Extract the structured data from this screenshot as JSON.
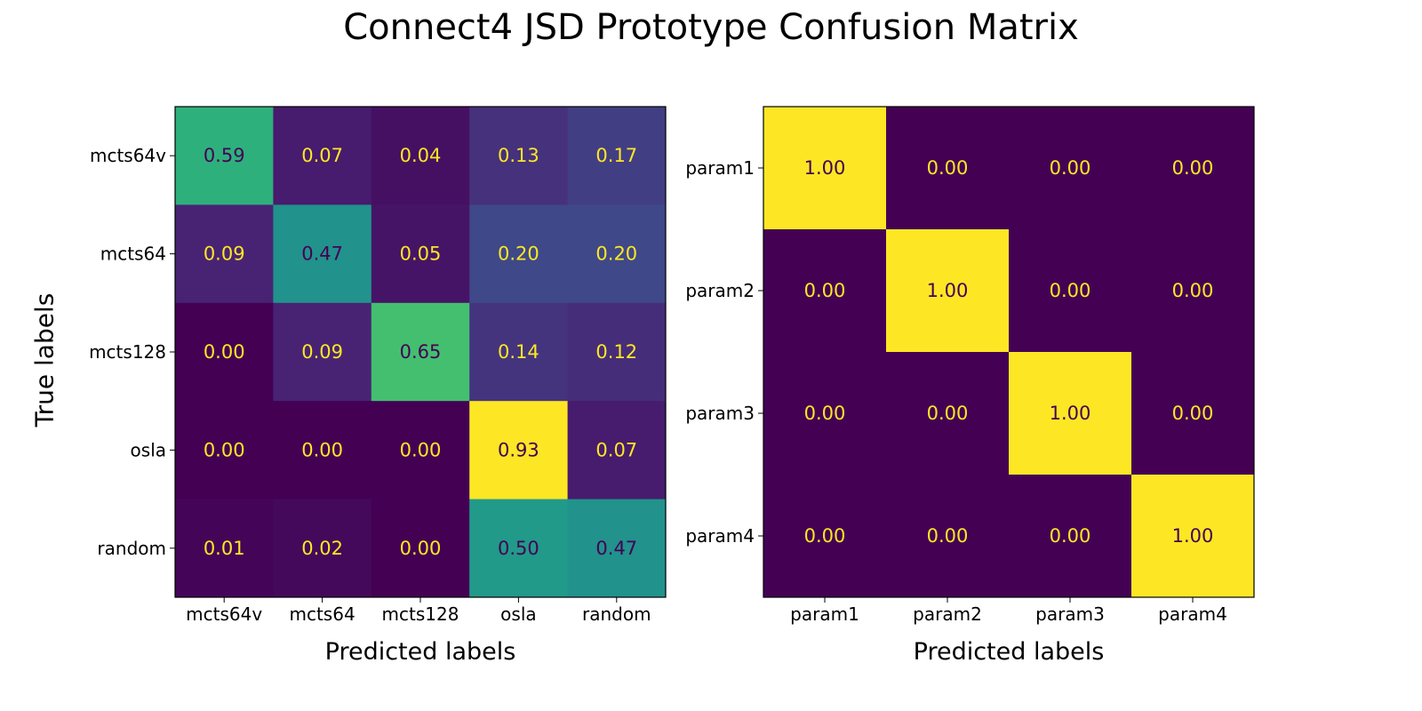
{
  "title": "Connect4 JSD Prototype Confusion Matrix",
  "shared_ylabel": "True labels",
  "colormap": "viridis",
  "chart_data": [
    {
      "type": "heatmap",
      "xlabel": "Predicted labels",
      "ylabel": "True labels",
      "x_categories": [
        "mcts64v",
        "mcts64",
        "mcts128",
        "osla",
        "random"
      ],
      "y_categories": [
        "mcts64v",
        "mcts64",
        "mcts128",
        "osla",
        "random"
      ],
      "values": [
        [
          0.59,
          0.07,
          0.04,
          0.13,
          0.17
        ],
        [
          0.09,
          0.47,
          0.05,
          0.2,
          0.2
        ],
        [
          0.0,
          0.09,
          0.65,
          0.14,
          0.12
        ],
        [
          0.0,
          0.0,
          0.0,
          0.93,
          0.07
        ],
        [
          0.01,
          0.02,
          0.0,
          0.5,
          0.47
        ]
      ],
      "colorscale_range": [
        0.0,
        0.93
      ]
    },
    {
      "type": "heatmap",
      "xlabel": "Predicted labels",
      "ylabel": "",
      "x_categories": [
        "param1",
        "param2",
        "param3",
        "param4"
      ],
      "y_categories": [
        "param1",
        "param2",
        "param3",
        "param4"
      ],
      "values": [
        [
          1.0,
          0.0,
          0.0,
          0.0
        ],
        [
          0.0,
          1.0,
          0.0,
          0.0
        ],
        [
          0.0,
          0.0,
          1.0,
          0.0
        ],
        [
          0.0,
          0.0,
          0.0,
          1.0
        ]
      ],
      "colorscale_range": [
        0.0,
        1.0
      ]
    }
  ],
  "colors": {
    "text_on_dark": "#fde725",
    "text_on_light": "#440154"
  }
}
